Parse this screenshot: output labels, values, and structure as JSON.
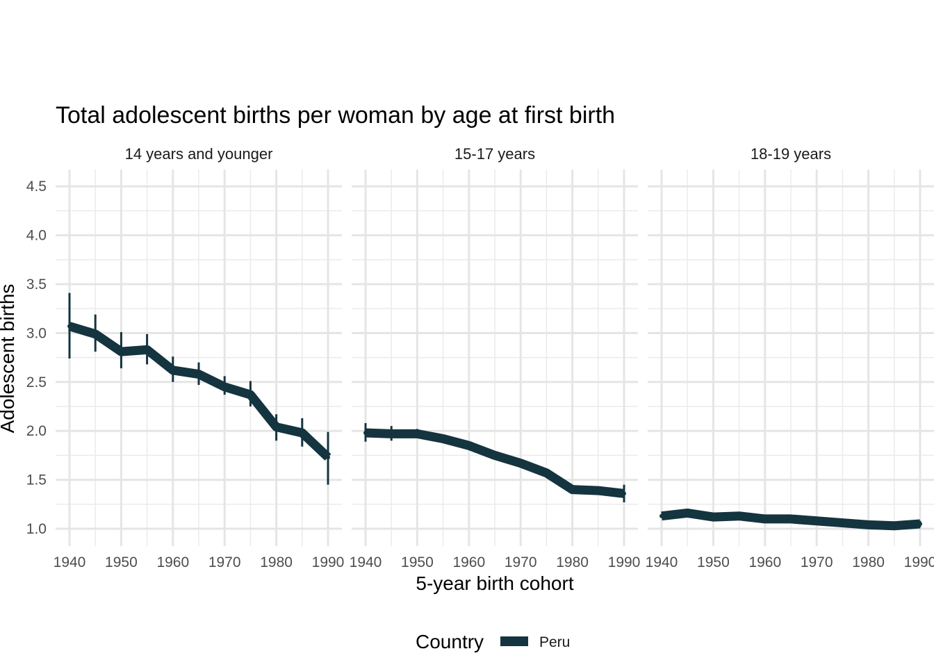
{
  "chart_data": {
    "type": "line",
    "title": "Total adolescent births per woman by age at first birth",
    "xlabel": "5-year birth cohort",
    "ylabel": "Adolescent births",
    "xlim": [
      1940,
      1990
    ],
    "ylim": [
      0.85,
      4.65
    ],
    "x_ticks": [
      1940,
      1950,
      1960,
      1970,
      1980,
      1990
    ],
    "y_ticks": [
      "1.0",
      "1.5",
      "2.0",
      "2.5",
      "3.0",
      "3.5",
      "4.0",
      "4.5"
    ],
    "grid": true,
    "legend": {
      "title": "Country",
      "position": "bottom",
      "entries": [
        "Peru"
      ]
    },
    "series_color": "#14343f",
    "panels": [
      {
        "label": "14 years and younger",
        "series": [
          {
            "name": "Peru",
            "x": [
              1940,
              1945,
              1950,
              1955,
              1960,
              1965,
              1970,
              1975,
              1980,
              1985,
              1990
            ],
            "y": [
              3.07,
              2.99,
              2.81,
              2.83,
              2.62,
              2.58,
              2.45,
              2.37,
              2.04,
              1.98,
              1.73
            ],
            "lower": [
              2.74,
              2.81,
              2.64,
              2.68,
              2.5,
              2.47,
              2.37,
              2.25,
              1.9,
              1.84,
              1.45
            ],
            "upper": [
              3.41,
              3.19,
              3.01,
              2.99,
              2.76,
              2.7,
              2.56,
              2.51,
              2.17,
              2.13,
              1.99
            ]
          }
        ]
      },
      {
        "label": "15-17 years",
        "series": [
          {
            "name": "Peru",
            "x": [
              1940,
              1945,
              1950,
              1955,
              1960,
              1965,
              1970,
              1975,
              1980,
              1985,
              1990
            ],
            "y": [
              1.98,
              1.97,
              1.97,
              1.92,
              1.85,
              1.75,
              1.67,
              1.57,
              1.4,
              1.39,
              1.36
            ],
            "lower": [
              1.89,
              1.9,
              1.93,
              1.88,
              1.82,
              1.72,
              1.64,
              1.54,
              1.38,
              1.36,
              1.27
            ],
            "upper": [
              2.08,
              2.05,
              2.02,
              1.96,
              1.88,
              1.78,
              1.7,
              1.6,
              1.42,
              1.42,
              1.45
            ]
          }
        ]
      },
      {
        "label": "18-19 years",
        "series": [
          {
            "name": "Peru",
            "x": [
              1940,
              1945,
              1950,
              1955,
              1960,
              1965,
              1970,
              1975,
              1980,
              1985,
              1990
            ],
            "y": [
              1.13,
              1.16,
              1.12,
              1.13,
              1.1,
              1.1,
              1.08,
              1.06,
              1.04,
              1.03,
              1.05
            ],
            "lower": [
              1.11,
              1.14,
              1.11,
              1.11,
              1.09,
              1.09,
              1.07,
              1.05,
              1.03,
              1.02,
              1.02
            ],
            "upper": [
              1.15,
              1.18,
              1.14,
              1.14,
              1.11,
              1.11,
              1.09,
              1.07,
              1.05,
              1.04,
              1.08
            ]
          }
        ]
      }
    ]
  }
}
